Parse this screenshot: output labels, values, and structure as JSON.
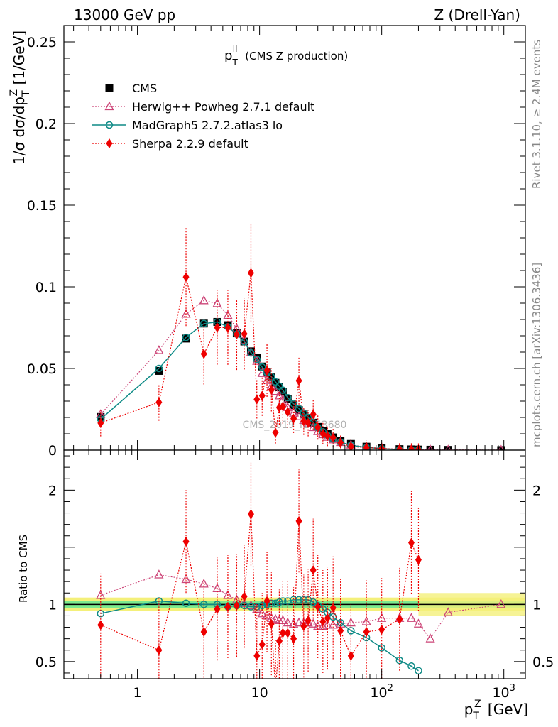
{
  "header": {
    "left": "13000 GeV pp",
    "right": "Z (Drell-Yan)"
  },
  "side": {
    "rivet": "Rivet 3.1.10, ≥ 2.4M events",
    "mcplots": "mcplots.cern.ch [arXiv:1306.3436]"
  },
  "chart_data": {
    "type": "scatter",
    "title_main": "p",
    "title_sup": "ll",
    "title_sub": "T",
    "title_rest": " (CMS Z production)",
    "watermark": "CMS_2019_I1753680",
    "ylabel_pre": "1/σ dσ/dp",
    "ylabel_sup": "Z",
    "ylabel_sub": "T",
    "ylabel_post": " [1/GeV]",
    "xlabel_pre": "p",
    "xlabel_sup": "Z",
    "xlabel_sub": "T",
    "xlabel_post": " [GeV]",
    "ratio_ylabel": "Ratio to CMS",
    "x_scale": "log",
    "x_range": [
      0.25,
      1500
    ],
    "main_y_range": [
      0,
      0.26
    ],
    "ratio_y_range": [
      0.35,
      2.35
    ],
    "main_y_ticks": [
      {
        "v": 0,
        "label": "0"
      },
      {
        "v": 0.05,
        "label": "0.05"
      },
      {
        "v": 0.1,
        "label": "0.1"
      },
      {
        "v": 0.15,
        "label": "0.15"
      },
      {
        "v": 0.2,
        "label": "0.2"
      },
      {
        "v": 0.25,
        "label": "0.25"
      }
    ],
    "ratio_y_ticks": [
      {
        "v": 0.5,
        "label": "0.5"
      },
      {
        "v": 1,
        "label": "1"
      },
      {
        "v": 2,
        "label": "2"
      }
    ],
    "x_ticks": [
      {
        "v": 1,
        "base": "1",
        "exp": ""
      },
      {
        "v": 10,
        "base": "10",
        "exp": ""
      },
      {
        "v": 100,
        "base": "10",
        "exp": "2"
      },
      {
        "v": 1000,
        "base": "10",
        "exp": "3"
      }
    ],
    "legend_position": "top-left",
    "x": [
      0.5,
      1.5,
      2.5,
      3.5,
      4.5,
      5.5,
      6.5,
      7.5,
      8.5,
      9.5,
      10.5,
      11.5,
      12.5,
      13.5,
      14.5,
      15.5,
      17,
      19,
      21,
      23,
      25,
      27.5,
      30,
      33,
      36,
      40,
      46,
      56,
      75,
      100,
      140,
      175,
      200,
      250,
      350,
      950
    ],
    "series": [
      {
        "name": "CMS",
        "color": "#000000",
        "marker": "square",
        "y": [
          0.0203,
          0.0485,
          0.0683,
          0.0775,
          0.0785,
          0.0765,
          0.0715,
          0.0665,
          0.0605,
          0.0565,
          0.0512,
          0.0475,
          0.0445,
          0.0412,
          0.0385,
          0.0358,
          0.0312,
          0.0275,
          0.0245,
          0.0218,
          0.0193,
          0.0168,
          0.0142,
          0.0118,
          0.0098,
          0.0078,
          0.0058,
          0.0038,
          0.0021,
          0.0012,
          0.0006,
          0.00045,
          0.00035,
          0.00025,
          0.00015,
          3e-05
        ]
      },
      {
        "name": "Herwig++ Powheg 2.7.1 default",
        "color": "#cc4477",
        "marker": "triangle",
        "line": "dotted",
        "y": [
          0.0219,
          0.0611,
          0.0833,
          0.0916,
          0.0898,
          0.0826,
          0.0744,
          0.0672,
          0.0599,
          0.0545,
          0.0471,
          0.0428,
          0.0392,
          0.036,
          0.0333,
          0.0308,
          0.0262,
          0.0228,
          0.0206,
          0.0183,
          0.0162,
          0.0139,
          0.0115,
          0.0096,
          0.008,
          0.0064,
          0.0048,
          0.0032,
          0.0018,
          0.0011,
          0.00053,
          0.0004,
          0.00029,
          0.00018,
          0.00014,
          3e-05
        ],
        "ratio": [
          1.08,
          1.26,
          1.22,
          1.18,
          1.14,
          1.08,
          1.04,
          1.01,
          0.99,
          0.96,
          0.92,
          0.9,
          0.88,
          0.87,
          0.86,
          0.86,
          0.84,
          0.83,
          0.84,
          0.84,
          0.84,
          0.83,
          0.81,
          0.81,
          0.82,
          0.82,
          0.83,
          0.84,
          0.85,
          0.88,
          0.88,
          0.88,
          0.83,
          0.7,
          0.93,
          1.0
        ]
      },
      {
        "name": "MadGraph5 2.7.2.atlas3 lo",
        "color": "#0e8a86",
        "marker": "circle",
        "line": "solid",
        "y": [
          0.019,
          0.05,
          0.069,
          0.0775,
          0.0785,
          0.0755,
          0.071,
          0.0663,
          0.0595,
          0.0555,
          0.0508,
          0.0475,
          0.0449,
          0.0418,
          0.0392,
          0.0367,
          0.0321,
          0.0284,
          0.0254,
          0.0227,
          0.02,
          0.017,
          0.0138,
          0.0112,
          0.009,
          0.0068,
          0.0049,
          0.003,
          0.0016,
          0.0009,
          0.0004,
          0.00022,
          0.00014
        ],
        "ratio": [
          0.92,
          1.03,
          1.01,
          1.0,
          1.0,
          0.98,
          0.99,
          0.99,
          0.98,
          0.98,
          0.99,
          1.0,
          1.01,
          1.01,
          1.02,
          1.03,
          1.03,
          1.04,
          1.04,
          1.04,
          1.04,
          1.02,
          0.99,
          0.96,
          0.93,
          0.89,
          0.84,
          0.77,
          0.71,
          0.62,
          0.51,
          0.46,
          0.42
        ]
      },
      {
        "name": "Sherpa 2.2.9 default",
        "color": "#ee0000",
        "marker": "diamond",
        "line": "dotted",
        "y": [
          0.0166,
          0.0293,
          0.106,
          0.0589,
          0.0751,
          0.075,
          0.0708,
          0.0712,
          0.1085,
          0.0311,
          0.0333,
          0.0488,
          0.0369,
          0.0107,
          0.0261,
          0.0268,
          0.0233,
          0.0193,
          0.0425,
          0.0177,
          0.0166,
          0.0219,
          0.0139,
          0.0101,
          0.0086,
          0.0076,
          0.0045,
          0.0021,
          0.0016,
          0.0009,
          0.00052,
          0.00048,
          0.00042
        ],
        "ratio": [
          0.82,
          0.6,
          1.55,
          0.76,
          0.96,
          0.98,
          0.99,
          1.07,
          1.79,
          0.55,
          0.65,
          1.03,
          0.83,
          0.26,
          0.68,
          0.75,
          0.75,
          0.7,
          1.73,
          0.81,
          0.86,
          1.3,
          0.98,
          0.85,
          0.88,
          0.97,
          0.77,
          0.55,
          0.76,
          0.78,
          0.87,
          1.54,
          1.39
        ]
      }
    ]
  }
}
